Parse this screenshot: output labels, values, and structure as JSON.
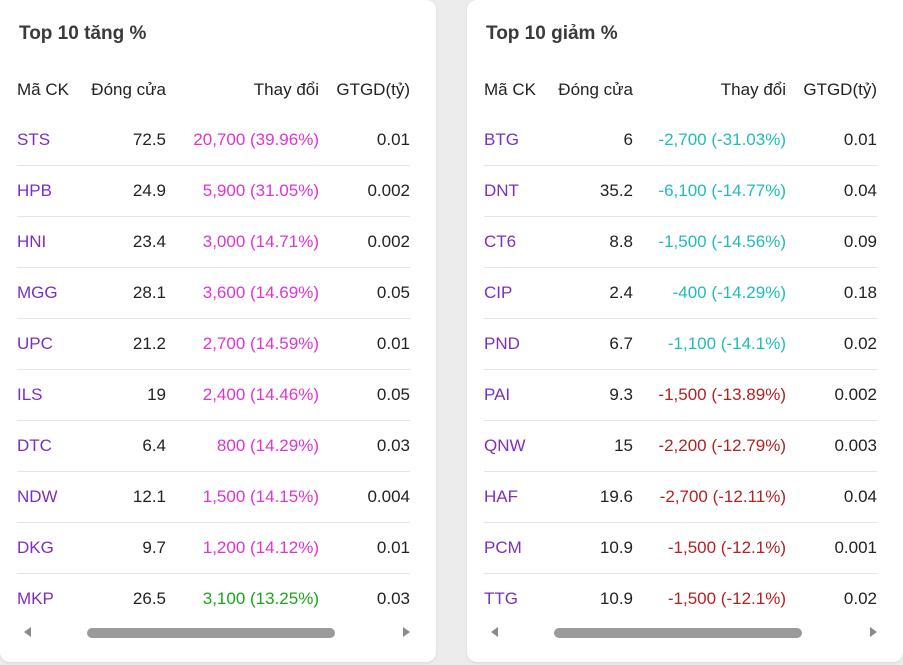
{
  "colors": {
    "symbol": "#7b2fbe",
    "ceiling": "#e033d6",
    "up": "#1aa51a",
    "floor": "#1fbcbc",
    "down": "#b22222"
  },
  "gainers": {
    "title": "Top 10 tăng %",
    "headers": {
      "symbol": "Mã CK",
      "close": "Đóng cửa",
      "change": "Thay đổi",
      "value": "GTGD(tỷ)"
    },
    "rows": [
      {
        "symbol": "STS",
        "close": "72.5",
        "change": "20,700 (39.96%)",
        "value": "0.01",
        "color": "#e033d6"
      },
      {
        "symbol": "HPB",
        "close": "24.9",
        "change": "5,900 (31.05%)",
        "value": "0.002",
        "color": "#e033d6"
      },
      {
        "symbol": "HNI",
        "close": "23.4",
        "change": "3,000 (14.71%)",
        "value": "0.002",
        "color": "#e033d6"
      },
      {
        "symbol": "MGG",
        "close": "28.1",
        "change": "3,600 (14.69%)",
        "value": "0.05",
        "color": "#e033d6"
      },
      {
        "symbol": "UPC",
        "close": "21.2",
        "change": "2,700 (14.59%)",
        "value": "0.01",
        "color": "#e033d6"
      },
      {
        "symbol": "ILS",
        "close": "19",
        "change": "2,400 (14.46%)",
        "value": "0.05",
        "color": "#e033d6"
      },
      {
        "symbol": "DTC",
        "close": "6.4",
        "change": "800 (14.29%)",
        "value": "0.03",
        "color": "#e033d6"
      },
      {
        "symbol": "NDW",
        "close": "12.1",
        "change": "1,500 (14.15%)",
        "value": "0.004",
        "color": "#e033d6"
      },
      {
        "symbol": "DKG",
        "close": "9.7",
        "change": "1,200 (14.12%)",
        "value": "0.01",
        "color": "#e033d6"
      },
      {
        "symbol": "MKP",
        "close": "26.5",
        "change": "3,100 (13.25%)",
        "value": "0.03",
        "color": "#1aa51a"
      }
    ]
  },
  "losers": {
    "title": "Top 10 giảm %",
    "headers": {
      "symbol": "Mã CK",
      "close": "Đóng cửa",
      "change": "Thay đổi",
      "value": "GTGD(tỷ)"
    },
    "rows": [
      {
        "symbol": "BTG",
        "close": "6",
        "change": "-2,700 (-31.03%)",
        "value": "0.01",
        "color": "#1fbcbc"
      },
      {
        "symbol": "DNT",
        "close": "35.2",
        "change": "-6,100 (-14.77%)",
        "value": "0.04",
        "color": "#1fbcbc"
      },
      {
        "symbol": "CT6",
        "close": "8.8",
        "change": "-1,500 (-14.56%)",
        "value": "0.09",
        "color": "#1fbcbc"
      },
      {
        "symbol": "CIP",
        "close": "2.4",
        "change": "-400 (-14.29%)",
        "value": "0.18",
        "color": "#1fbcbc"
      },
      {
        "symbol": "PND",
        "close": "6.7",
        "change": "-1,100 (-14.1%)",
        "value": "0.02",
        "color": "#1fbcbc"
      },
      {
        "symbol": "PAI",
        "close": "9.3",
        "change": "-1,500 (-13.89%)",
        "value": "0.002",
        "color": "#b22222"
      },
      {
        "symbol": "QNW",
        "close": "15",
        "change": "-2,200 (-12.79%)",
        "value": "0.003",
        "color": "#b22222"
      },
      {
        "symbol": "HAF",
        "close": "19.6",
        "change": "-2,700 (-12.11%)",
        "value": "0.04",
        "color": "#b22222"
      },
      {
        "symbol": "PCM",
        "close": "10.9",
        "change": "-1,500 (-12.1%)",
        "value": "0.001",
        "color": "#b22222"
      },
      {
        "symbol": "TTG",
        "close": "10.9",
        "change": "-1,500 (-12.1%)",
        "value": "0.02",
        "color": "#b22222"
      }
    ]
  }
}
